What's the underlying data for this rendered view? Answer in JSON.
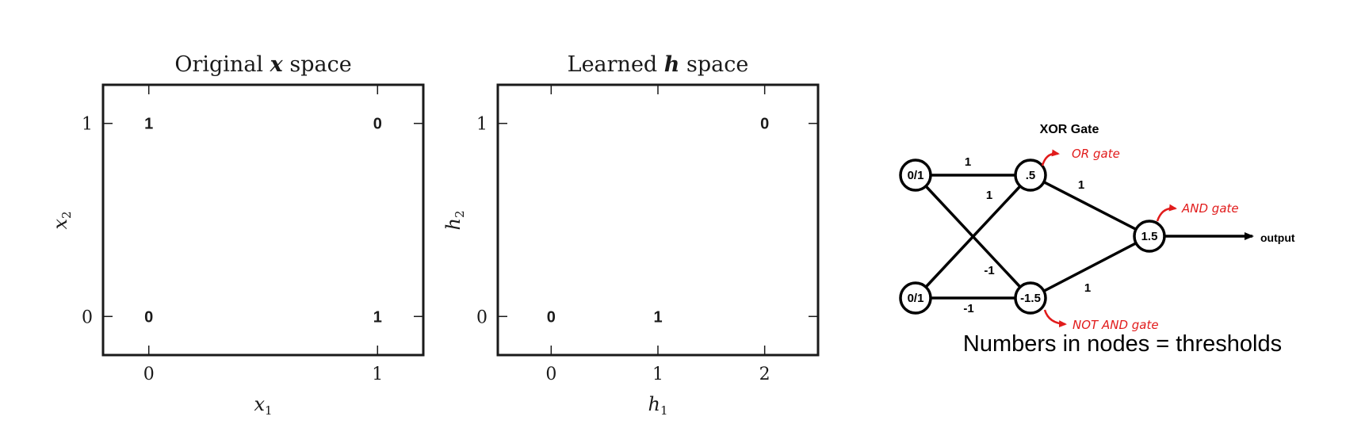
{
  "chart_data": [
    {
      "type": "scatter",
      "title": "Original x space",
      "title_prefix": "Original ",
      "title_symbol": "x",
      "title_suffix": " space",
      "xlabel": "x1",
      "xlabel_base": "x",
      "xlabel_sub": "1",
      "ylabel": "x2",
      "ylabel_base": "x",
      "ylabel_sub": "2",
      "xlim": [
        -0.2,
        1.2
      ],
      "ylim": [
        -0.2,
        1.2
      ],
      "xticks": [
        0,
        1
      ],
      "yticks": [
        0,
        1
      ],
      "points": [
        {
          "x": 0,
          "y": 1,
          "label": "1"
        },
        {
          "x": 1,
          "y": 1,
          "label": "0"
        },
        {
          "x": 0,
          "y": 0,
          "label": "0"
        },
        {
          "x": 1,
          "y": 0,
          "label": "1"
        }
      ]
    },
    {
      "type": "scatter",
      "title": "Learned h space",
      "title_prefix": "Learned ",
      "title_symbol": "h",
      "title_suffix": " space",
      "xlabel": "h1",
      "xlabel_base": "h",
      "xlabel_sub": "1",
      "ylabel": "h2",
      "ylabel_base": "h",
      "ylabel_sub": "2",
      "xlim": [
        -0.5,
        2.5
      ],
      "ylim": [
        -0.2,
        1.2
      ],
      "xticks": [
        0,
        1,
        2
      ],
      "yticks": [
        0,
        1
      ],
      "points": [
        {
          "x": 0,
          "y": 0,
          "label": "0"
        },
        {
          "x": 1,
          "y": 0,
          "label": "1"
        },
        {
          "x": 2,
          "y": 1,
          "label": "0"
        }
      ]
    }
  ],
  "network": {
    "title": "XOR Gate",
    "nodes": [
      {
        "id": "in1",
        "label": "0/1"
      },
      {
        "id": "in2",
        "label": "0/1"
      },
      {
        "id": "or",
        "label": ".5"
      },
      {
        "id": "nand",
        "label": "-1.5"
      },
      {
        "id": "and",
        "label": "1.5"
      }
    ],
    "edges": [
      {
        "from": "in1",
        "to": "or",
        "weight": "1"
      },
      {
        "from": "in1",
        "to": "nand",
        "weight": "-1"
      },
      {
        "from": "in2",
        "to": "or",
        "weight": "1"
      },
      {
        "from": "in2",
        "to": "nand",
        "weight": "-1"
      },
      {
        "from": "or",
        "to": "and",
        "weight": "1"
      },
      {
        "from": "nand",
        "to": "and",
        "weight": "1"
      }
    ],
    "annotations": {
      "or": "OR gate",
      "and": "AND gate",
      "nand": "NOT AND gate"
    },
    "output_label": "output",
    "caption": "Numbers in nodes = thresholds"
  }
}
